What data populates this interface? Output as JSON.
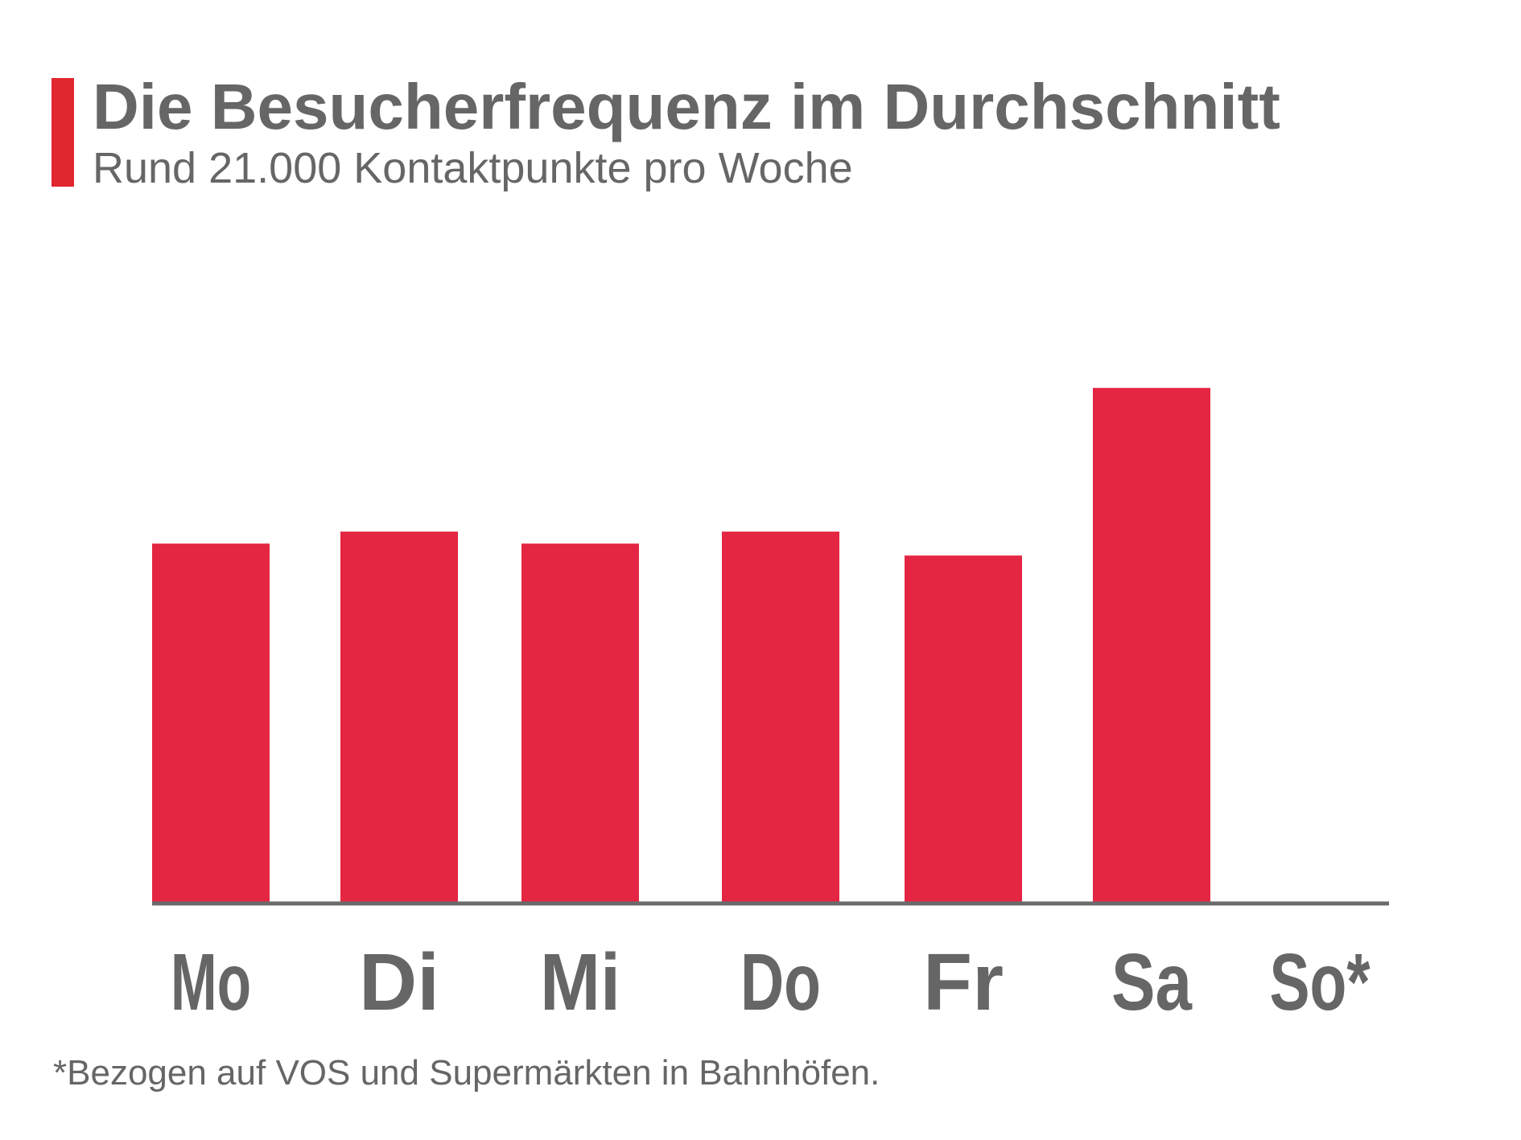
{
  "colors": {
    "accent": "#e0262e",
    "bar": "#e42643",
    "text": "#666666",
    "axis": "#6b6b6b"
  },
  "header": {
    "title": "Die Besucherfrequenz im Durchschnitt",
    "subtitle": "Rund 21.000 Kontaktpunkte pro Woche"
  },
  "footnote": "*Bezogen auf VOS und Supermärkten in Bahnhöfen.",
  "chart_data": {
    "type": "bar",
    "categories": [
      "Mo",
      "Di",
      "Mi",
      "Do",
      "Fr",
      "Sa",
      "So*"
    ],
    "values": [
      3000,
      3100,
      3000,
      3100,
      2900,
      4300,
      0
    ],
    "title": "Die Besucherfrequenz im Durchschnitt",
    "subtitle": "Rund 21.000 Kontaktpunkte pro Woche",
    "xlabel": "",
    "ylabel": "",
    "ylim": [
      0,
      6000
    ],
    "grid": false,
    "legend": "none"
  }
}
